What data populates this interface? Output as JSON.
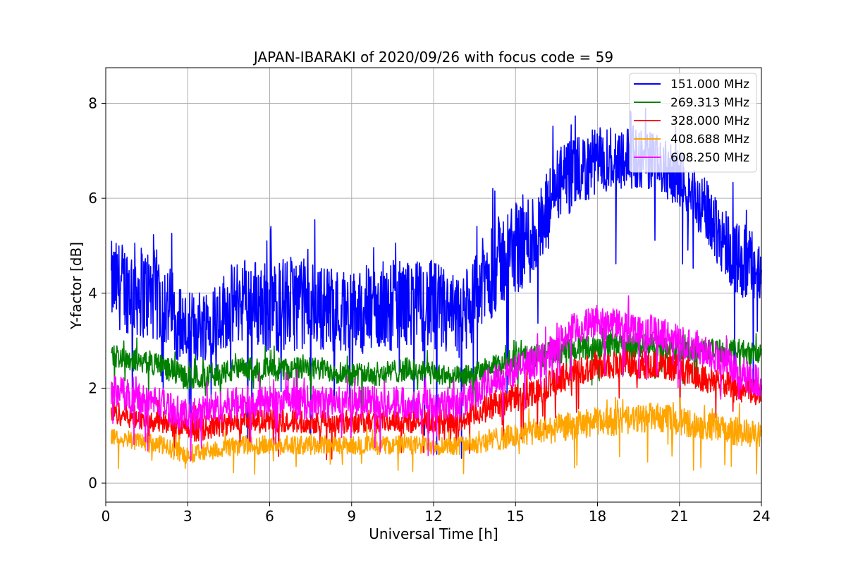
{
  "chart_data": {
    "type": "line",
    "title": "JAPAN-IBARAKI of 2020/09/26 with focus code = 59",
    "xlabel": "Universal Time [h]",
    "ylabel": "Y-factor [dB]",
    "xlim": [
      0,
      24
    ],
    "ylim": [
      -0.4,
      8.75
    ],
    "xticks": [
      0,
      3,
      6,
      9,
      12,
      15,
      18,
      21,
      24
    ],
    "yticks": [
      0,
      2,
      4,
      6,
      8
    ],
    "grid": true,
    "legend_position": "top-right",
    "x_range_of_data": [
      0.2,
      24.0
    ],
    "series": [
      {
        "name": "151.000 MHz",
        "color": "#0000ff",
        "x": [
          0.2,
          1,
          2,
          3,
          4,
          5,
          6,
          7,
          8,
          9,
          10,
          11,
          12,
          13,
          13.5,
          14,
          15,
          16,
          16.5,
          17,
          18,
          19,
          20,
          21,
          22,
          23,
          24
        ],
        "mean": [
          4.2,
          4.1,
          3.9,
          3.2,
          3.5,
          3.9,
          3.7,
          3.8,
          3.7,
          3.6,
          3.7,
          3.8,
          3.7,
          3.4,
          3.9,
          4.4,
          5.0,
          5.3,
          6.3,
          6.4,
          6.8,
          6.9,
          6.8,
          6.4,
          5.7,
          4.8,
          4.4
        ],
        "spread": [
          0.9,
          1.0,
          1.0,
          0.8,
          0.8,
          0.9,
          1.0,
          1.0,
          0.9,
          0.9,
          1.0,
          0.9,
          1.0,
          0.9,
          0.9,
          1.0,
          1.0,
          1.0,
          0.8,
          0.8,
          0.7,
          0.7,
          0.6,
          0.6,
          0.7,
          0.8,
          0.8
        ]
      },
      {
        "name": "269.313 MHz",
        "color": "#008000",
        "x": [
          0.2,
          1,
          2,
          3,
          4,
          5,
          6,
          7,
          8,
          9,
          10,
          11,
          12,
          13,
          14,
          15,
          16,
          17,
          18,
          19,
          20,
          21,
          22,
          23,
          24
        ],
        "mean": [
          2.7,
          2.6,
          2.5,
          2.2,
          2.3,
          2.4,
          2.4,
          2.4,
          2.4,
          2.3,
          2.3,
          2.4,
          2.3,
          2.2,
          2.4,
          2.6,
          2.7,
          2.8,
          2.9,
          2.9,
          2.9,
          2.8,
          2.8,
          2.8,
          2.7
        ],
        "spread": [
          0.25,
          0.25,
          0.25,
          0.25,
          0.25,
          0.25,
          0.25,
          0.25,
          0.25,
          0.25,
          0.25,
          0.25,
          0.25,
          0.25,
          0.25,
          0.25,
          0.25,
          0.25,
          0.25,
          0.25,
          0.25,
          0.25,
          0.25,
          0.25,
          0.25
        ]
      },
      {
        "name": "328.000 MHz",
        "color": "#ff0000",
        "x": [
          0.2,
          1,
          2,
          3,
          4,
          5,
          6,
          7,
          8,
          9,
          10,
          11,
          12,
          13,
          14,
          15,
          16,
          17,
          18,
          19,
          20,
          21,
          22,
          23,
          24
        ],
        "mean": [
          1.5,
          1.4,
          1.3,
          1.1,
          1.2,
          1.3,
          1.3,
          1.3,
          1.3,
          1.3,
          1.3,
          1.3,
          1.3,
          1.3,
          1.6,
          1.8,
          2.0,
          2.3,
          2.5,
          2.5,
          2.5,
          2.4,
          2.2,
          2.0,
          1.9
        ],
        "spread": [
          0.25,
          0.25,
          0.25,
          0.25,
          0.25,
          0.25,
          0.25,
          0.25,
          0.25,
          0.25,
          0.25,
          0.25,
          0.25,
          0.25,
          0.3,
          0.3,
          0.3,
          0.3,
          0.3,
          0.3,
          0.3,
          0.3,
          0.3,
          0.3,
          0.3
        ]
      },
      {
        "name": "408.688 MHz",
        "color": "#ffa500",
        "x": [
          0.2,
          1,
          2,
          3,
          4,
          5,
          6,
          7,
          8,
          9,
          10,
          11,
          12,
          13,
          14,
          15,
          16,
          17,
          18,
          19,
          20,
          21,
          22,
          23,
          24
        ],
        "mean": [
          1.0,
          0.9,
          0.8,
          0.6,
          0.7,
          0.8,
          0.8,
          0.8,
          0.8,
          0.8,
          0.8,
          0.8,
          0.8,
          0.8,
          0.9,
          1.0,
          1.1,
          1.2,
          1.3,
          1.3,
          1.4,
          1.3,
          1.2,
          1.1,
          1.0
        ],
        "spread": [
          0.2,
          0.2,
          0.2,
          0.2,
          0.2,
          0.2,
          0.2,
          0.2,
          0.2,
          0.2,
          0.2,
          0.2,
          0.2,
          0.2,
          0.25,
          0.25,
          0.3,
          0.3,
          0.3,
          0.3,
          0.3,
          0.3,
          0.3,
          0.3,
          0.3
        ]
      },
      {
        "name": "608.250 MHz",
        "color": "#ff00ff",
        "x": [
          0.2,
          1,
          2,
          3,
          4,
          5,
          6,
          7,
          8,
          9,
          10,
          11,
          12,
          13,
          14,
          15,
          16,
          17,
          18,
          19,
          20,
          21,
          22,
          23,
          24
        ],
        "mean": [
          2.0,
          1.8,
          1.7,
          1.4,
          1.6,
          1.7,
          1.7,
          1.7,
          1.7,
          1.7,
          1.7,
          1.7,
          1.7,
          1.7,
          2.1,
          2.4,
          2.6,
          3.2,
          3.4,
          3.3,
          3.2,
          3.0,
          2.8,
          2.4,
          2.1
        ],
        "spread": [
          0.35,
          0.35,
          0.35,
          0.35,
          0.35,
          0.35,
          0.35,
          0.35,
          0.35,
          0.35,
          0.35,
          0.35,
          0.35,
          0.35,
          0.35,
          0.35,
          0.35,
          0.35,
          0.35,
          0.35,
          0.35,
          0.35,
          0.35,
          0.35,
          0.35
        ]
      }
    ]
  }
}
